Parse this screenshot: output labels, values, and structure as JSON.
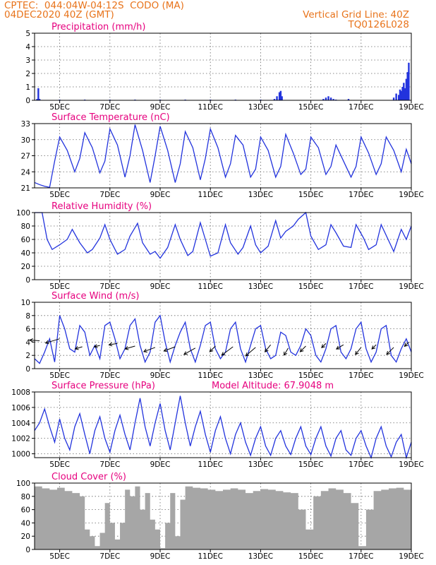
{
  "header": {
    "station": "CPTEC:  044:04W-04:12S  CODO (MA)",
    "date": "04DEC2020 40Z (GMT)",
    "grid_label": "Vertical Grid Line: 40Z",
    "run_id": "TQ0126L028"
  },
  "colors": {
    "header": "#e8731a",
    "title": "#e6007e",
    "series": "#2233dd",
    "cloud": "#a6a6a6"
  },
  "x_ticks": [
    "5DEC",
    "7DEC",
    "9DEC",
    "11DEC",
    "13DEC",
    "15DEC",
    "17DEC",
    "19DEC"
  ],
  "chart_data": [
    {
      "type": "bar",
      "title": "Precipitation (mm/h)",
      "ylim": [
        0,
        5
      ],
      "yticks": [
        "0",
        "1",
        "2",
        "3",
        "4",
        "5"
      ],
      "grid": true,
      "x": [
        4.1,
        4.15,
        4.2,
        5.0,
        6.0,
        7.0,
        8.0,
        9.0,
        10.0,
        11.0,
        12.0,
        13.0,
        13.55,
        13.65,
        13.75,
        13.8,
        13.85,
        15.5,
        15.6,
        15.7,
        15.8,
        15.9,
        16.0,
        16.5,
        18.3,
        18.4,
        18.5,
        18.55,
        18.6,
        18.65,
        18.7,
        18.75,
        18.8,
        18.85,
        18.9
      ],
      "values": [
        0.1,
        0.9,
        0.1,
        0.05,
        0.05,
        0.05,
        0.05,
        0.05,
        0.05,
        0.05,
        0.05,
        0.05,
        0.1,
        0.3,
        0.6,
        0.7,
        0.3,
        0.1,
        0.2,
        0.3,
        0.2,
        0.1,
        0.05,
        0.1,
        0.2,
        0.5,
        0.4,
        0.8,
        0.7,
        1.0,
        1.3,
        0.9,
        1.6,
        2.1,
        2.8
      ]
    },
    {
      "type": "line",
      "title": "Surface Temperature (nC)",
      "ylim": [
        21,
        33
      ],
      "yticks": [
        "21",
        "24",
        "27",
        "30",
        "33"
      ],
      "grid": true,
      "x": [
        4.0,
        4.2,
        4.4,
        4.6,
        4.8,
        5.0,
        5.3,
        5.6,
        5.8,
        6.0,
        6.3,
        6.6,
        6.8,
        7.0,
        7.3,
        7.6,
        7.8,
        8.0,
        8.3,
        8.6,
        8.8,
        9.0,
        9.3,
        9.6,
        9.8,
        10.0,
        10.3,
        10.6,
        10.8,
        11.0,
        11.3,
        11.6,
        11.8,
        12.0,
        12.3,
        12.6,
        12.8,
        13.0,
        13.3,
        13.6,
        13.8,
        14.0,
        14.3,
        14.6,
        14.8,
        15.0,
        15.3,
        15.6,
        15.8,
        16.0,
        16.3,
        16.6,
        16.8,
        17.0,
        17.3,
        17.6,
        17.8,
        18.0,
        18.3,
        18.6,
        18.8,
        19.0
      ],
      "values": [
        22.0,
        21.6,
        21.3,
        21.1,
        26.0,
        30.5,
        28.0,
        24.0,
        26.5,
        31.3,
        28.5,
        23.8,
        26.0,
        32.0,
        29.0,
        23.0,
        27.0,
        32.8,
        28.0,
        22.0,
        27.0,
        32.5,
        28.0,
        22.0,
        25.5,
        31.5,
        28.5,
        22.5,
        26.5,
        32.0,
        28.5,
        23.0,
        25.5,
        30.8,
        29.0,
        23.0,
        24.5,
        30.5,
        28.0,
        23.0,
        25.0,
        31.0,
        27.5,
        23.5,
        24.5,
        30.5,
        28.5,
        23.5,
        25.0,
        29.0,
        26.0,
        23.0,
        25.0,
        30.5,
        27.5,
        23.5,
        25.5,
        30.5,
        28.0,
        24.0,
        28.2,
        25.5
      ]
    },
    {
      "type": "line",
      "title": "Relative Humidity (%)",
      "ylim": [
        0,
        100
      ],
      "yticks": [
        "0",
        "20",
        "40",
        "60",
        "80",
        "100"
      ],
      "grid": true,
      "x": [
        4.0,
        4.3,
        4.5,
        4.7,
        5.0,
        5.3,
        5.5,
        5.8,
        6.1,
        6.3,
        6.6,
        6.8,
        7.0,
        7.3,
        7.6,
        7.8,
        8.1,
        8.3,
        8.6,
        8.8,
        9.0,
        9.3,
        9.6,
        9.8,
        10.1,
        10.3,
        10.6,
        10.8,
        11.0,
        11.3,
        11.6,
        11.8,
        12.1,
        12.3,
        12.6,
        12.8,
        13.0,
        13.3,
        13.6,
        13.8,
        14.0,
        14.3,
        14.5,
        14.8,
        15.0,
        15.3,
        15.6,
        15.8,
        16.0,
        16.3,
        16.6,
        16.8,
        17.1,
        17.3,
        17.6,
        17.8,
        18.1,
        18.3,
        18.6,
        18.8,
        19.0
      ],
      "values": [
        100,
        100,
        60,
        45,
        52,
        60,
        75,
        55,
        40,
        45,
        62,
        82,
        60,
        38,
        45,
        65,
        84,
        55,
        38,
        42,
        32,
        48,
        82,
        60,
        36,
        42,
        85,
        60,
        35,
        40,
        82,
        55,
        38,
        48,
        80,
        52,
        40,
        50,
        88,
        62,
        72,
        80,
        90,
        100,
        65,
        45,
        52,
        82,
        70,
        50,
        48,
        82,
        62,
        45,
        52,
        82,
        58,
        42,
        75,
        60,
        80
      ]
    },
    {
      "type": "line",
      "title": "Surface Wind (m/s)",
      "ylim": [
        0,
        10
      ],
      "yticks": [
        "0",
        "2",
        "4",
        "6",
        "8",
        "10"
      ],
      "grid": true,
      "x": [
        4.0,
        4.2,
        4.4,
        4.6,
        4.8,
        5.0,
        5.2,
        5.4,
        5.6,
        5.8,
        6.0,
        6.2,
        6.4,
        6.6,
        6.8,
        7.0,
        7.2,
        7.4,
        7.6,
        7.8,
        8.0,
        8.2,
        8.4,
        8.6,
        8.8,
        9.0,
        9.2,
        9.4,
        9.6,
        9.8,
        10.0,
        10.2,
        10.4,
        10.6,
        10.8,
        11.0,
        11.2,
        11.4,
        11.6,
        11.8,
        12.0,
        12.2,
        12.4,
        12.6,
        12.8,
        13.0,
        13.2,
        13.4,
        13.6,
        13.8,
        14.0,
        14.2,
        14.4,
        14.6,
        14.8,
        15.0,
        15.2,
        15.4,
        15.6,
        15.8,
        16.0,
        16.2,
        16.4,
        16.6,
        16.8,
        17.0,
        17.2,
        17.4,
        17.6,
        17.8,
        18.0,
        18.2,
        18.4,
        18.6,
        18.8,
        19.0
      ],
      "values": [
        1.5,
        0.8,
        2.5,
        4.5,
        1.0,
        8.0,
        6.0,
        3.0,
        2.5,
        6.5,
        5.5,
        2.0,
        3.5,
        1.5,
        6.5,
        7.0,
        4.5,
        1.5,
        3.0,
        6.5,
        7.5,
        3.5,
        1.0,
        2.5,
        7.0,
        8.0,
        4.0,
        1.0,
        3.5,
        5.5,
        7.0,
        3.0,
        1.0,
        3.5,
        6.5,
        7.0,
        3.0,
        1.5,
        2.5,
        6.0,
        7.0,
        3.0,
        1.0,
        3.5,
        6.0,
        6.5,
        3.0,
        1.5,
        2.0,
        5.5,
        5.0,
        2.5,
        2.0,
        3.5,
        6.0,
        5.0,
        2.0,
        1.0,
        3.0,
        6.0,
        6.5,
        2.5,
        1.5,
        3.0,
        6.0,
        7.0,
        3.0,
        1.0,
        2.5,
        6.0,
        6.5,
        2.0,
        1.0,
        3.0,
        4.5,
        2.5
      ],
      "arrows": [
        {
          "x": 4.2,
          "y": 4.2,
          "dx": -14,
          "dy": -1
        },
        {
          "x": 5.0,
          "y": 4.5,
          "dx": -20,
          "dy": 6
        },
        {
          "x": 5.9,
          "y": 3.3,
          "dx": -10,
          "dy": 3
        },
        {
          "x": 6.6,
          "y": 3.5,
          "dx": -8,
          "dy": 2
        },
        {
          "x": 7.3,
          "y": 3.8,
          "dx": -12,
          "dy": 2
        },
        {
          "x": 8.0,
          "y": 3.4,
          "dx": -14,
          "dy": 4
        },
        {
          "x": 8.8,
          "y": 3.2,
          "dx": -16,
          "dy": 6
        },
        {
          "x": 9.6,
          "y": 3.3,
          "dx": -16,
          "dy": 6
        },
        {
          "x": 10.4,
          "y": 3.1,
          "dx": -16,
          "dy": 9
        },
        {
          "x": 11.2,
          "y": 3.4,
          "dx": -8,
          "dy": 8
        },
        {
          "x": 11.9,
          "y": 3.3,
          "dx": -16,
          "dy": 12
        },
        {
          "x": 12.8,
          "y": 3.2,
          "dx": -14,
          "dy": 12
        },
        {
          "x": 13.4,
          "y": 3.6,
          "dx": -8,
          "dy": 10
        },
        {
          "x": 14.1,
          "y": 3.1,
          "dx": -6,
          "dy": 10
        },
        {
          "x": 14.8,
          "y": 3.4,
          "dx": -8,
          "dy": 8
        },
        {
          "x": 15.6,
          "y": 3.8,
          "dx": -6,
          "dy": 6
        },
        {
          "x": 16.3,
          "y": 3.6,
          "dx": -10,
          "dy": 6
        },
        {
          "x": 17.0,
          "y": 3.2,
          "dx": -8,
          "dy": 10
        },
        {
          "x": 17.6,
          "y": 3.6,
          "dx": -6,
          "dy": 6
        },
        {
          "x": 18.3,
          "y": 3.2,
          "dx": -10,
          "dy": 10
        },
        {
          "x": 18.9,
          "y": 4.0,
          "dx": -6,
          "dy": 6
        }
      ]
    },
    {
      "type": "line",
      "title": "Surface Pressure (hPa)",
      "annotation": "Model Altitude: 67.9048 m",
      "ylim": [
        999.5,
        1008
      ],
      "yticks": [
        "1000",
        "1002",
        "1004",
        "1006",
        "1008"
      ],
      "grid": true,
      "x": [
        4.0,
        4.2,
        4.4,
        4.6,
        4.8,
        5.0,
        5.2,
        5.4,
        5.6,
        5.8,
        6.0,
        6.2,
        6.4,
        6.6,
        6.8,
        7.0,
        7.2,
        7.4,
        7.6,
        7.8,
        8.0,
        8.2,
        8.4,
        8.6,
        8.8,
        9.0,
        9.2,
        9.4,
        9.6,
        9.8,
        10.0,
        10.2,
        10.4,
        10.6,
        10.8,
        11.0,
        11.2,
        11.4,
        11.6,
        11.8,
        12.0,
        12.2,
        12.4,
        12.6,
        12.8,
        13.0,
        13.2,
        13.4,
        13.6,
        13.8,
        14.0,
        14.2,
        14.4,
        14.6,
        14.8,
        15.0,
        15.2,
        15.4,
        15.6,
        15.8,
        16.0,
        16.2,
        16.4,
        16.6,
        16.8,
        17.0,
        17.2,
        17.4,
        17.6,
        17.8,
        18.0,
        18.2,
        18.4,
        18.6,
        18.8,
        19.0
      ],
      "values": [
        1003.0,
        1004.0,
        1005.8,
        1003.5,
        1001.5,
        1004.5,
        1002.0,
        1000.5,
        1003.5,
        1005.2,
        1002.5,
        1000.0,
        1003.0,
        1004.8,
        1002.0,
        1000.2,
        1003.0,
        1005.0,
        1002.5,
        1000.5,
        1004.0,
        1007.2,
        1003.5,
        1001.0,
        1004.0,
        1006.5,
        1003.0,
        1000.5,
        1004.0,
        1007.5,
        1004.0,
        1001.0,
        1003.5,
        1005.5,
        1002.5,
        1000.2,
        1003.0,
        1004.8,
        1002.0,
        1000.0,
        1002.5,
        1004.0,
        1001.5,
        999.8,
        1002.0,
        1003.5,
        1001.0,
        999.8,
        1002.0,
        1003.0,
        1001.0,
        999.9,
        1002.0,
        1003.5,
        1001.0,
        999.9,
        1002.0,
        1003.5,
        1001.0,
        999.7,
        1002.0,
        1003.0,
        1000.5,
        999.8,
        1002.0,
        1003.0,
        1001.0,
        999.5,
        1002.0,
        1003.5,
        1001.0,
        999.6,
        1001.5,
        1002.5,
        999.5,
        1001.5
      ]
    },
    {
      "type": "area",
      "title": "Cloud Cover (%)",
      "ylim": [
        0,
        100
      ],
      "yticks": [
        "0",
        "20",
        "40",
        "60",
        "80",
        "100"
      ],
      "grid": true,
      "x": [
        4.0,
        4.3,
        4.6,
        4.9,
        5.2,
        5.5,
        5.8,
        6.0,
        6.2,
        6.4,
        6.6,
        6.8,
        7.0,
        7.2,
        7.4,
        7.6,
        7.8,
        8.0,
        8.2,
        8.4,
        8.6,
        8.8,
        9.0,
        9.2,
        9.4,
        9.6,
        9.8,
        10.0,
        10.3,
        10.6,
        10.9,
        11.2,
        11.5,
        11.8,
        12.1,
        12.4,
        12.7,
        13.0,
        13.3,
        13.6,
        13.9,
        14.2,
        14.5,
        14.8,
        15.1,
        15.4,
        15.7,
        16.0,
        16.3,
        16.6,
        16.9,
        17.2,
        17.5,
        17.8,
        18.1,
        18.4,
        18.7,
        19.0
      ],
      "values": [
        95,
        92,
        90,
        93,
        88,
        85,
        80,
        30,
        20,
        5,
        25,
        70,
        40,
        15,
        40,
        90,
        80,
        95,
        60,
        85,
        45,
        30,
        2,
        40,
        85,
        20,
        75,
        95,
        93,
        92,
        90,
        88,
        90,
        92,
        90,
        85,
        88,
        91,
        90,
        88,
        86,
        85,
        60,
        30,
        80,
        88,
        92,
        90,
        85,
        70,
        5,
        60,
        88,
        90,
        92,
        93,
        90,
        94
      ]
    }
  ]
}
